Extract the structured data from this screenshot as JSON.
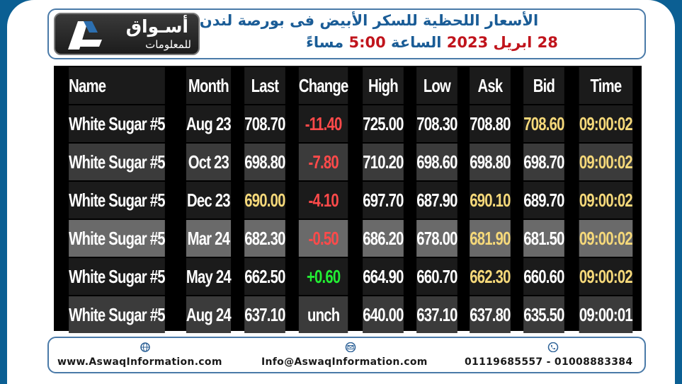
{
  "header": {
    "logo_arabic": "أسـواق",
    "logo_subtitle": "للمعلومات",
    "title_line1": "الأسعار اللحظية للسكر الأبيض فى بورصة لندن",
    "date_day_month": "28 ابريل",
    "date_year": "2023",
    "time_word": "الساعة",
    "time_value": "5:00",
    "time_suffix": "مساءً"
  },
  "table": {
    "columns": [
      "Name",
      "Month",
      "Last",
      "Change",
      "High",
      "Low",
      "Ask",
      "Bid",
      "Time"
    ],
    "rows": [
      [
        "White Sugar #5",
        "Aug 23",
        "708.70",
        "-11.40",
        "725.00",
        "708.30",
        "708.80",
        "708.60",
        "09:00:02"
      ],
      [
        "White Sugar #5",
        "Oct 23",
        "698.80",
        "-7.80",
        "710.20",
        "698.60",
        "698.80",
        "698.70",
        "09:00:02"
      ],
      [
        "White Sugar #5",
        "Dec 23",
        "690.00",
        "-4.10",
        "697.70",
        "687.90",
        "690.10",
        "689.70",
        "09:00:02"
      ],
      [
        "White Sugar #5",
        "Mar 24",
        "682.30",
        "-0.50",
        "686.20",
        "678.00",
        "681.90",
        "681.50",
        "09:00:02"
      ],
      [
        "White Sugar #5",
        "May 24",
        "662.50",
        "+0.60",
        "664.90",
        "660.70",
        "662.30",
        "660.60",
        "09:00:02"
      ],
      [
        "White Sugar #5",
        "Aug 24",
        "637.10",
        "unch",
        "640.00",
        "637.10",
        "637.80",
        "635.50",
        "09:00:01"
      ]
    ]
  },
  "footer": {
    "website": "www.AswaqInformation.com",
    "email": "Info@AswaqInformation.com",
    "phones": "01119685557 - 01008883384"
  },
  "colors": {
    "background_blue": "#0b5f93",
    "title_blue": "#1a5c96",
    "title_red": "#c0141c",
    "negative": "#ff4a4a",
    "positive": "#22ee33",
    "highlight_yellow": "#f6d97a"
  },
  "icons": [
    "logo-mark-icon",
    "globe-icon",
    "email-icon",
    "phone-icon"
  ]
}
